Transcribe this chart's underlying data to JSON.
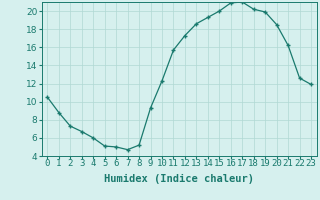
{
  "x": [
    0,
    1,
    2,
    3,
    4,
    5,
    6,
    7,
    8,
    9,
    10,
    11,
    12,
    13,
    14,
    15,
    16,
    17,
    18,
    19,
    20,
    21,
    22,
    23
  ],
  "y": [
    10.5,
    8.8,
    7.3,
    6.7,
    6.0,
    5.1,
    5.0,
    4.7,
    5.2,
    9.3,
    12.3,
    15.7,
    17.3,
    18.6,
    19.3,
    20.0,
    20.9,
    21.0,
    20.2,
    19.9,
    18.5,
    16.2,
    12.6,
    11.9
  ],
  "line_color": "#1a7a6e",
  "marker": "+",
  "marker_size": 3,
  "bg_color": "#d6f0ee",
  "grid_color": "#b0d8d4",
  "xlabel": "Humidex (Indice chaleur)",
  "xlim": [
    -0.5,
    23.5
  ],
  "ylim": [
    4,
    21
  ],
  "yticks": [
    4,
    6,
    8,
    10,
    12,
    14,
    16,
    18,
    20
  ],
  "xticks": [
    0,
    1,
    2,
    3,
    4,
    5,
    6,
    7,
    8,
    9,
    10,
    11,
    12,
    13,
    14,
    15,
    16,
    17,
    18,
    19,
    20,
    21,
    22,
    23
  ],
  "xtick_labels": [
    "0",
    "1",
    "2",
    "3",
    "4",
    "5",
    "6",
    "7",
    "8",
    "9",
    "10",
    "11",
    "12",
    "13",
    "14",
    "15",
    "16",
    "17",
    "18",
    "19",
    "20",
    "21",
    "22",
    "23"
  ],
  "axis_label_fontsize": 7.5,
  "tick_fontsize": 6.5
}
